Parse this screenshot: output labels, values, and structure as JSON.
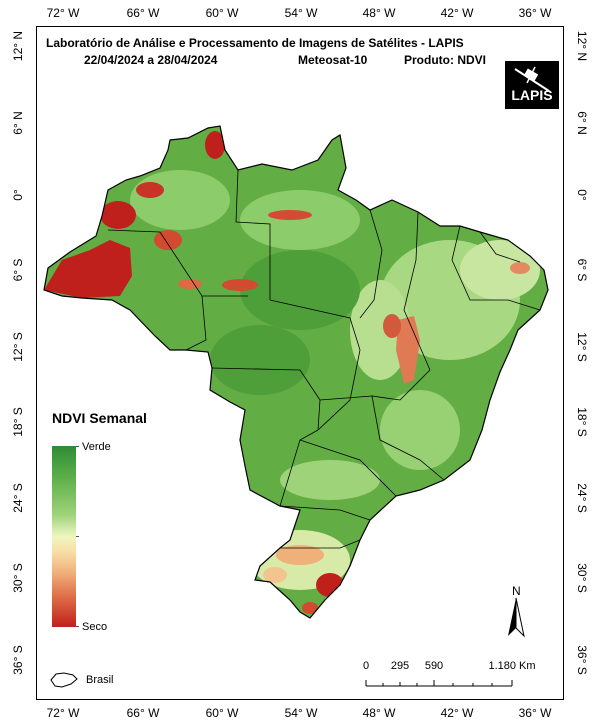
{
  "header": {
    "line1": "Laboratório de Análise e Processamento de Imagens de Satélites - LAPIS",
    "period": "22/04/2024  a  28/04/2024",
    "satellite": "Meteosat-10",
    "product": "Produto: NDVI"
  },
  "logo": {
    "text": "LAPIS"
  },
  "axes": {
    "longitudes": [
      "72° W",
      "66° W",
      "60° W",
      "54° W",
      "48° W",
      "42° W",
      "36° W"
    ],
    "latitudes": [
      "12° N",
      "6° N",
      "0°",
      "6° S",
      "12° S",
      "18° S",
      "24° S",
      "30° S",
      "36° S"
    ]
  },
  "legend": {
    "title": "NDVI Semanal",
    "top_label": "Verde",
    "bottom_label": "Seco",
    "colors": [
      "#2e8b35",
      "#9fd37a",
      "#eef6c0",
      "#f0b07a",
      "#c0201c"
    ]
  },
  "north_arrow": {
    "label": "N"
  },
  "scale_bar": {
    "labels": [
      "0",
      "295",
      "590",
      "1.180 Km"
    ]
  },
  "inset_legend": {
    "label": "Brasil"
  }
}
